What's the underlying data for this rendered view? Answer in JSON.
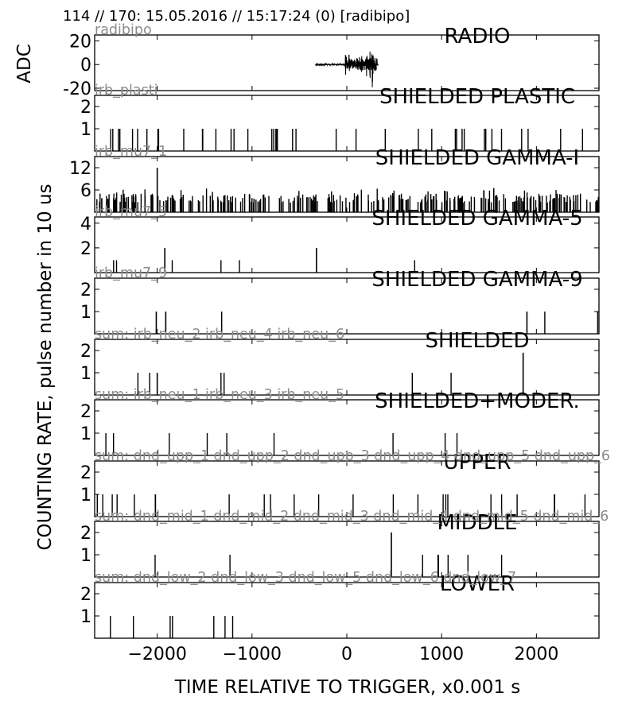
{
  "header": "114 // 170:   15.05.2016 // 15:17:24 (0)  [radibipo]",
  "ylabel_top": "ADC",
  "ylabel_main": "COUNTING RATE,   pulse number in 10 us",
  "xlabel": "TIME RELATIVE TO TRIGGER,   x0.001 s",
  "chart_data": {
    "type": "multi-panel time series",
    "grid": false,
    "xlim": [
      -2660,
      2660
    ],
    "x_ticks": [
      -2000,
      -1000,
      0,
      1000,
      2000
    ],
    "x_tick_labels": [
      "−2000",
      "−1000",
      "0",
      "1000",
      "2000"
    ],
    "panels": [
      {
        "title": "RADIO",
        "detector": "radibipo",
        "kind": "waveform",
        "ylim": [
          -22,
          25
        ],
        "y_ticks": [
          -20,
          0,
          20
        ],
        "y_tick_labels": [
          "-20",
          "0",
          "20"
        ],
        "signal": {
          "x_range": [
            -330,
            330
          ],
          "baseline": 0,
          "bursts": [
            {
              "x": -10,
              "amp": 14
            },
            {
              "x": 25,
              "amp": 10
            },
            {
              "x": 130,
              "amp": 7
            },
            {
              "x": 160,
              "amp": 9
            },
            {
              "x": 210,
              "amp": 12
            },
            {
              "x": 245,
              "amp": 13
            },
            {
              "x": 270,
              "amp": 22
            },
            {
              "x": 300,
              "amp": 9
            }
          ]
        }
      },
      {
        "title": "SHIELDED PLASTIC",
        "detector": "irb_plasti",
        "kind": "pulses",
        "ylim": [
          0,
          2.5
        ],
        "y_ticks": [
          1,
          2
        ],
        "y_tick_labels": [
          "1",
          "2"
        ],
        "rate": 40,
        "seed": 11,
        "spikes": []
      },
      {
        "title": "SHIELDED GAMMA-I",
        "detector": "irb_mu7_1",
        "kind": "pulses",
        "ylim": [
          0,
          15
        ],
        "y_ticks": [
          6,
          12
        ],
        "y_tick_labels": [
          "6",
          "12"
        ],
        "rate": 300,
        "seed": 23,
        "base_level": 2.6,
        "noise_amp": 2.4,
        "spikes": [
          {
            "x": -2000,
            "y": 12
          },
          {
            "x": 1550,
            "y": 6.5
          }
        ]
      },
      {
        "title": "SHIELDED GAMMA-5",
        "detector": "irb_mu7_5",
        "kind": "pulses",
        "ylim": [
          0,
          4.5
        ],
        "y_ticks": [
          2,
          4
        ],
        "y_tick_labels": [
          "2",
          "4"
        ],
        "rate": 6,
        "seed": 37,
        "spikes": [
          {
            "x": -1920,
            "y": 2
          },
          {
            "x": -320,
            "y": 2
          }
        ]
      },
      {
        "title": "SHIELDED GAMMA-9",
        "detector": "irb_mu7_9",
        "kind": "pulses",
        "ylim": [
          0,
          2.5
        ],
        "y_ticks": [
          1,
          2
        ],
        "y_tick_labels": [
          "1",
          "2"
        ],
        "rate": 3,
        "seed": 41,
        "spikes": [
          {
            "x": -2010,
            "y": 1
          },
          {
            "x": -1910,
            "y": 1
          },
          {
            "x": 1900,
            "y": 1
          }
        ]
      },
      {
        "title": "SHIELDED",
        "detector": "sum: irb_neu_2 irb_neu_4 irb_neu_6",
        "kind": "pulses",
        "ylim": [
          0,
          2.5
        ],
        "y_ticks": [
          1,
          2
        ],
        "y_tick_labels": [
          "1",
          "2"
        ],
        "rate": 6,
        "seed": 53,
        "spikes": [
          {
            "x": -2000,
            "y": 1
          },
          {
            "x": 1860,
            "y": 1.9
          }
        ]
      },
      {
        "title": "SHIELDED+MODER.",
        "detector": "sum: irb_neu_1 irb_neu_3 irb_neu_5",
        "kind": "pulses",
        "ylim": [
          0,
          2.5
        ],
        "y_ticks": [
          1,
          2
        ],
        "y_tick_labels": [
          "1",
          "2"
        ],
        "rate": 9,
        "seed": 67,
        "spikes": []
      },
      {
        "title": "UPPER",
        "detector": "sum: dnd_upp_1 dnd_upp_2 dnd_upp_3 dnd_upp_4 dnd_upp_5 dnd_upp_6",
        "kind": "pulses",
        "ylim": [
          0,
          2.5
        ],
        "y_ticks": [
          1,
          2
        ],
        "y_tick_labels": [
          "1",
          "2"
        ],
        "rate": 24,
        "seed": 79,
        "spikes": []
      },
      {
        "title": "MIDDLE",
        "detector": "sum: dnd_mid_1 dnd_mid_2 dnd_mid_3 dnd_mid_4 dnd_mid_5 dnd_mid_6",
        "kind": "pulses",
        "ylim": [
          0,
          2.5
        ],
        "y_ticks": [
          1,
          2
        ],
        "y_tick_labels": [
          "1",
          "2"
        ],
        "rate": 8,
        "seed": 83,
        "spikes": [
          {
            "x": 470,
            "y": 2
          }
        ]
      },
      {
        "title": "LOWER",
        "detector": "sum: dnd_low_2 dnd_low_3 dnd_low_5 dnd_low_6 dnd_low_7",
        "kind": "pulses",
        "ylim": [
          0,
          2.5
        ],
        "y_ticks": [
          1,
          2
        ],
        "y_tick_labels": [
          "1",
          "2"
        ],
        "rate": 7,
        "seed": 97,
        "spikes": []
      }
    ]
  }
}
